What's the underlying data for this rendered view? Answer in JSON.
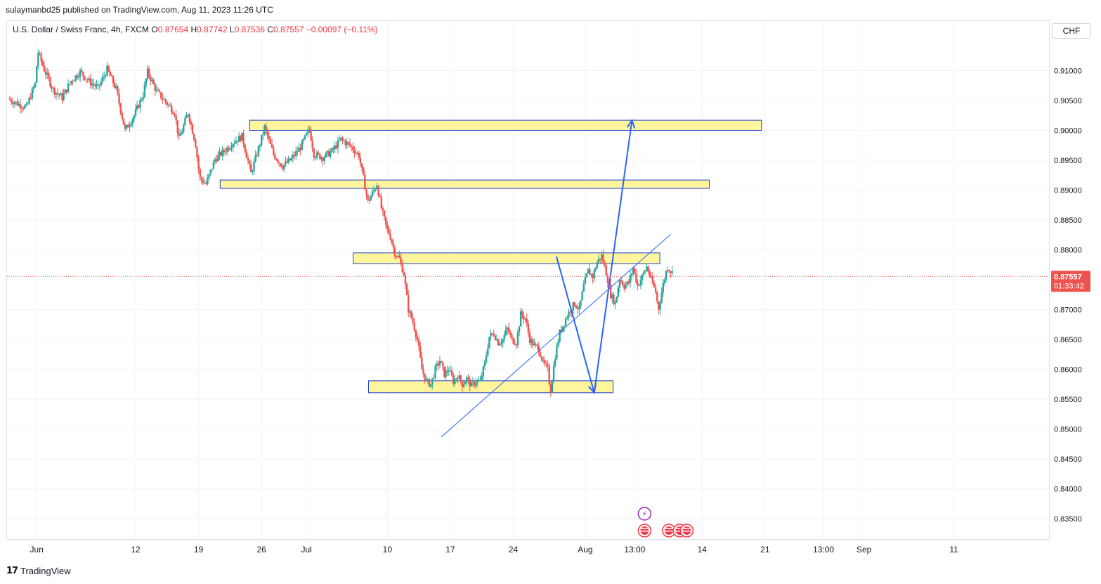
{
  "header": {
    "publisher_line": "sulaymanbd25 published on TradingView.com, Aug 11, 2023 11:26 UTC"
  },
  "legend": {
    "symbol": "U.S. Dollar / Swiss Franc, 4h, FXCM",
    "open_label": "O",
    "open": "0.87654",
    "high_label": "H",
    "high": "0.87742",
    "low_label": "L",
    "low": "0.87536",
    "close_label": "C",
    "close": "0.87557",
    "change": "−0.00097 (−0.11%)"
  },
  "currency_button": "CHF",
  "price_badge": {
    "price": "0.87557",
    "countdown": "01:33:42"
  },
  "footer": {
    "brand": "TradingView"
  },
  "colors": {
    "up": "#26a69a",
    "down": "#ef5350",
    "zone_fill": "#fff59d",
    "zone_stroke": "#1e3fcc",
    "drawing": "#2962ff",
    "price_line": "#ef5350",
    "event_purple": "#9c27b0",
    "event_red": "#f23645"
  },
  "chart_data": {
    "type": "candlestick",
    "y_ticks": [
      "0.91000",
      "0.90500",
      "0.90000",
      "0.89500",
      "0.89000",
      "0.88500",
      "0.88000",
      "0.87500",
      "0.87000",
      "0.86500",
      "0.86000",
      "0.85500",
      "0.85000",
      "0.84500",
      "0.84000",
      "0.83500"
    ],
    "x_ticks": [
      "Jun",
      "12",
      "19",
      "26",
      "Jul",
      "10",
      "17",
      "24",
      "Aug",
      "13:00",
      "14",
      "21",
      "13:00",
      "Sep",
      "11"
    ],
    "x_tick_days": [
      0,
      11,
      18,
      25,
      30,
      39,
      46,
      53,
      61,
      66.5,
      74,
      81,
      87.5,
      92,
      102
    ],
    "x_range_days": [
      -3.3,
      112.5
    ],
    "y_range": [
      0.8315,
      0.915
    ],
    "last_price": 0.87557,
    "zones": [
      {
        "from_day": 23.7,
        "to_day": 80.6,
        "low": 0.9,
        "high": 0.9017
      },
      {
        "from_day": 20.4,
        "to_day": 74.8,
        "low": 0.8903,
        "high": 0.8917
      },
      {
        "from_day": 35.2,
        "to_day": 69.3,
        "low": 0.8777,
        "high": 0.8795
      },
      {
        "from_day": 36.9,
        "to_day": 64.1,
        "low": 0.8561,
        "high": 0.8581
      }
    ],
    "trendline": {
      "from": [
        45.0,
        0.8487
      ],
      "to": [
        70.5,
        0.8826
      ]
    },
    "projection_path": [
      [
        57.8,
        0.8789
      ],
      [
        62.0,
        0.8561
      ],
      [
        66.2,
        0.9017
      ]
    ],
    "price_anchors": [
      [
        -3.0,
        0.9053
      ],
      [
        -2.0,
        0.9045
      ],
      [
        -1.0,
        0.9038
      ],
      [
        0.0,
        0.9078
      ],
      [
        0.3,
        0.9132
      ],
      [
        1.0,
        0.9102
      ],
      [
        2.0,
        0.9068
      ],
      [
        3.0,
        0.9055
      ],
      [
        4.0,
        0.9083
      ],
      [
        5.0,
        0.9098
      ],
      [
        6.0,
        0.9082
      ],
      [
        7.0,
        0.9071
      ],
      [
        8.0,
        0.9102
      ],
      [
        9.0,
        0.9069
      ],
      [
        10.0,
        0.9
      ],
      [
        11.0,
        0.9025
      ],
      [
        12.0,
        0.906
      ],
      [
        12.5,
        0.9098
      ],
      [
        13.5,
        0.9065
      ],
      [
        14.5,
        0.9048
      ],
      [
        15.5,
        0.903
      ],
      [
        16.0,
        0.8985
      ],
      [
        17.0,
        0.903
      ],
      [
        17.8,
        0.898
      ],
      [
        18.3,
        0.892
      ],
      [
        19.0,
        0.891
      ],
      [
        20.0,
        0.8952
      ],
      [
        21.0,
        0.8965
      ],
      [
        22.0,
        0.898
      ],
      [
        23.0,
        0.899
      ],
      [
        24.0,
        0.8928
      ],
      [
        25.0,
        0.8978
      ],
      [
        25.5,
        0.9005
      ],
      [
        26.5,
        0.896
      ],
      [
        27.5,
        0.894
      ],
      [
        28.5,
        0.8952
      ],
      [
        29.5,
        0.8972
      ],
      [
        30.5,
        0.9002
      ],
      [
        31.0,
        0.896
      ],
      [
        32.0,
        0.8955
      ],
      [
        33.0,
        0.8965
      ],
      [
        34.0,
        0.8985
      ],
      [
        35.0,
        0.8975
      ],
      [
        36.0,
        0.8958
      ],
      [
        36.5,
        0.892
      ],
      [
        37.0,
        0.888
      ],
      [
        37.5,
        0.8895
      ],
      [
        38.0,
        0.891
      ],
      [
        38.5,
        0.887
      ],
      [
        39.0,
        0.884
      ],
      [
        39.5,
        0.8822
      ],
      [
        40.0,
        0.8795
      ],
      [
        40.5,
        0.8785
      ],
      [
        41.0,
        0.876
      ],
      [
        41.5,
        0.87
      ],
      [
        42.0,
        0.868
      ],
      [
        42.5,
        0.865
      ],
      [
        43.0,
        0.86
      ],
      [
        43.5,
        0.858
      ],
      [
        44.0,
        0.8575
      ],
      [
        44.5,
        0.86
      ],
      [
        45.0,
        0.8615
      ],
      [
        45.5,
        0.8592
      ],
      [
        46.0,
        0.86
      ],
      [
        46.5,
        0.858
      ],
      [
        47.0,
        0.859
      ],
      [
        47.5,
        0.8575
      ],
      [
        48.0,
        0.8585
      ],
      [
        48.5,
        0.8572
      ],
      [
        49.0,
        0.858
      ],
      [
        49.5,
        0.858
      ],
      [
        50.0,
        0.861
      ],
      [
        50.5,
        0.8655
      ],
      [
        51.0,
        0.866
      ],
      [
        51.5,
        0.8645
      ],
      [
        52.0,
        0.865
      ],
      [
        52.5,
        0.8668
      ],
      [
        53.0,
        0.865
      ],
      [
        53.5,
        0.8645
      ],
      [
        54.0,
        0.8692
      ],
      [
        54.5,
        0.8685
      ],
      [
        55.0,
        0.865
      ],
      [
        55.5,
        0.864
      ],
      [
        56.0,
        0.8635
      ],
      [
        56.5,
        0.861
      ],
      [
        57.0,
        0.86
      ],
      [
        57.3,
        0.8562
      ],
      [
        57.8,
        0.862
      ],
      [
        58.3,
        0.866
      ],
      [
        59.0,
        0.8685
      ],
      [
        59.5,
        0.87
      ],
      [
        60.0,
        0.871
      ],
      [
        60.5,
        0.87
      ],
      [
        61.0,
        0.874
      ],
      [
        61.5,
        0.8765
      ],
      [
        62.0,
        0.8755
      ],
      [
        62.5,
        0.878
      ],
      [
        63.0,
        0.879
      ],
      [
        63.5,
        0.8762
      ],
      [
        64.0,
        0.8725
      ],
      [
        64.5,
        0.871
      ],
      [
        65.0,
        0.8752
      ],
      [
        65.5,
        0.874
      ],
      [
        66.0,
        0.8745
      ],
      [
        66.5,
        0.877
      ],
      [
        67.0,
        0.874
      ],
      [
        67.5,
        0.8755
      ],
      [
        68.0,
        0.8772
      ],
      [
        68.5,
        0.875
      ],
      [
        69.0,
        0.873
      ],
      [
        69.3,
        0.87
      ],
      [
        69.8,
        0.874
      ],
      [
        70.3,
        0.8772
      ],
      [
        70.8,
        0.8762
      ]
    ],
    "events": [
      {
        "day": 67.6,
        "kind": "bolt"
      },
      {
        "day": 67.6,
        "kind": "us-flag"
      },
      {
        "day": 70.3,
        "kind": "us-flag"
      },
      {
        "day": 71.5,
        "kind": "us-flag"
      },
      {
        "day": 72.3,
        "kind": "us-flag"
      }
    ]
  }
}
